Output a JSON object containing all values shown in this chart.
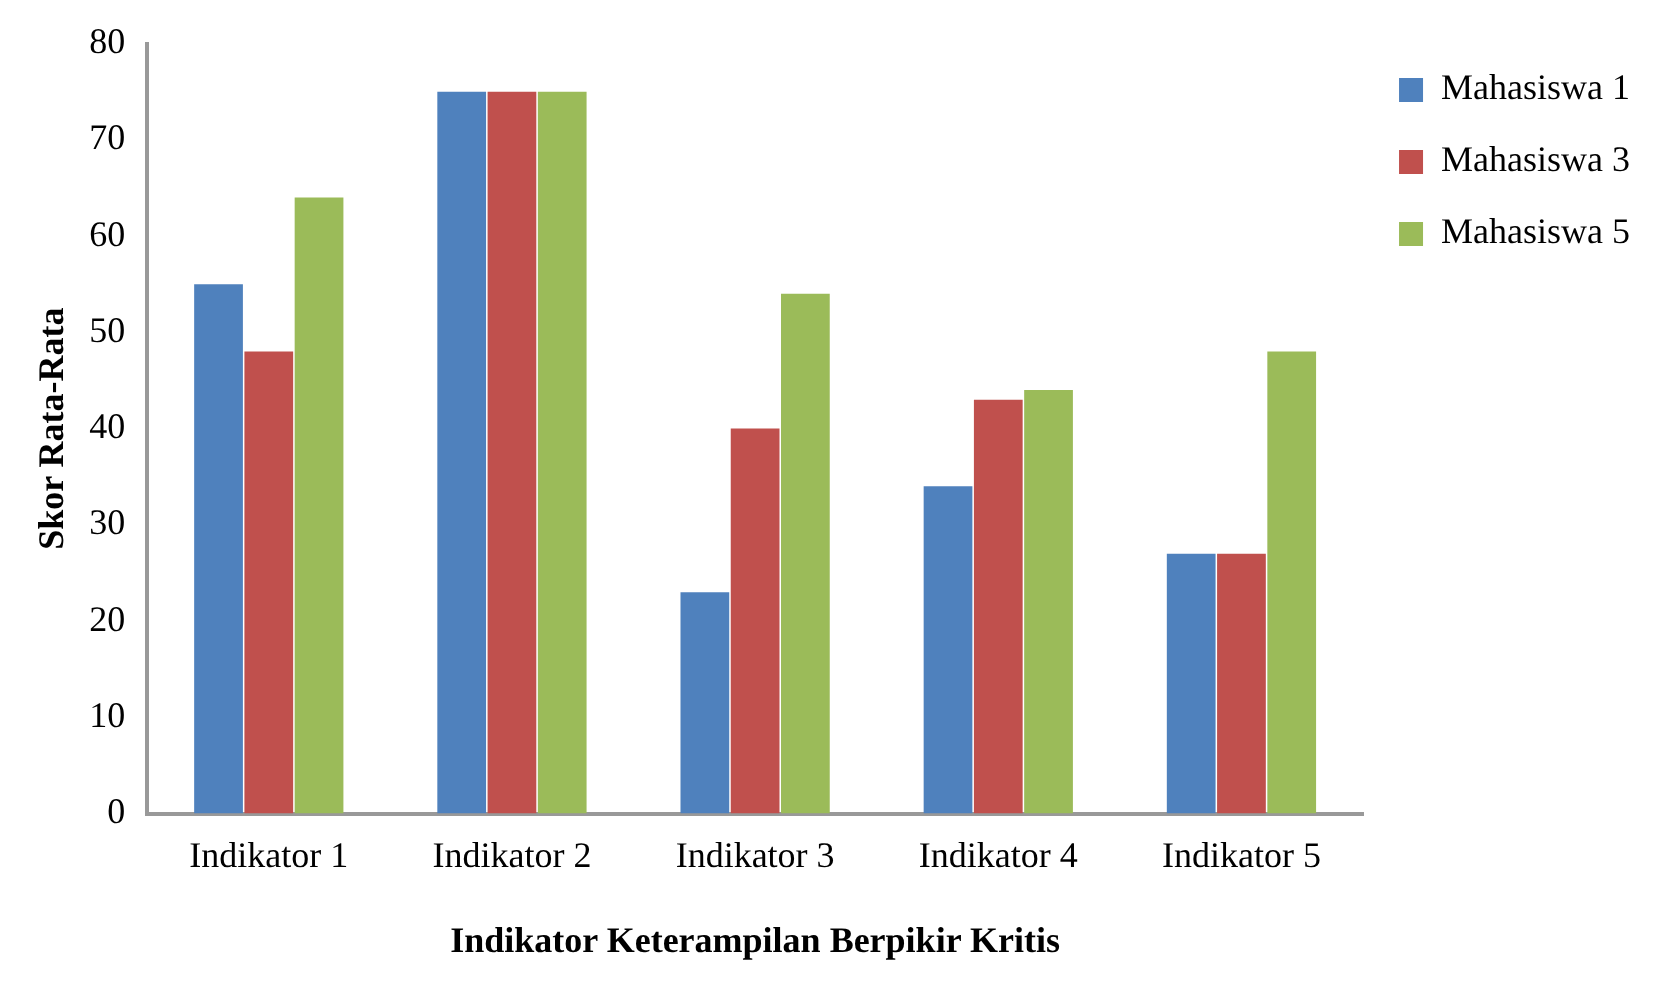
{
  "chart_data": {
    "type": "bar",
    "xlabel": "Indikator Keterampilan Berpikir Kritis",
    "ylabel": "Skor Rata-Rata",
    "categories": [
      "Indikator 1",
      "Indikator 2",
      "Indikator 3",
      "Indikator 4",
      "Indikator 5"
    ],
    "series": [
      {
        "name": "Mahasiswa 1",
        "color": "#4f81bd",
        "values": [
          55,
          75,
          23,
          34,
          27
        ]
      },
      {
        "name": "Mahasiswa 3",
        "color": "#c0504d",
        "values": [
          48,
          75,
          40,
          43,
          27
        ]
      },
      {
        "name": "Mahasiswa 5",
        "color": "#9bbb59",
        "values": [
          64,
          75,
          54,
          44,
          48
        ]
      }
    ],
    "ylim": [
      0,
      80
    ],
    "yticks": [
      0,
      10,
      20,
      30,
      40,
      50,
      60,
      70,
      80
    ],
    "grid": false,
    "legend": "top right"
  }
}
